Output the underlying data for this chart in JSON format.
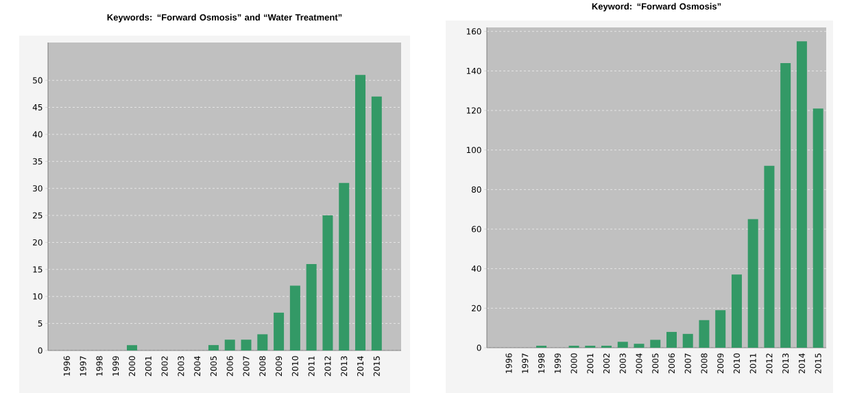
{
  "chart_data": [
    {
      "type": "bar",
      "title": "Keywords: “Forward Osmosis” and “Water Treatment”",
      "categories": [
        "1996",
        "1997",
        "1998",
        "1999",
        "2000",
        "2001",
        "2002",
        "2003",
        "2004",
        "2005",
        "2006",
        "2007",
        "2008",
        "2009",
        "2010",
        "2011",
        "2012",
        "2013",
        "2014",
        "2015"
      ],
      "values": [
        0,
        0,
        0,
        0,
        1,
        0,
        0,
        0,
        0,
        1,
        2,
        2,
        3,
        7,
        12,
        16,
        25,
        31,
        51,
        47
      ],
      "color": "#339966",
      "ylim": [
        0,
        57
      ],
      "yticks": [
        0,
        5,
        10,
        15,
        20,
        25,
        30,
        35,
        40,
        45,
        50
      ],
      "grid": "y"
    },
    {
      "type": "bar",
      "title": "Keyword: “Forward Osmosis”",
      "categories": [
        "1996",
        "1997",
        "1998",
        "1999",
        "2000",
        "2001",
        "2002",
        "2003",
        "2004",
        "2005",
        "2006",
        "2007",
        "2008",
        "2009",
        "2010",
        "2011",
        "2012",
        "2013",
        "2014",
        "2015"
      ],
      "values": [
        0,
        0,
        1,
        0,
        1,
        1,
        1,
        3,
        2,
        4,
        8,
        7,
        14,
        19,
        37,
        65,
        92,
        144,
        155,
        121
      ],
      "color": "#339966",
      "ylim": [
        0,
        162
      ],
      "yticks": [
        0,
        20,
        40,
        60,
        80,
        100,
        120,
        140,
        160
      ],
      "grid": "y"
    }
  ]
}
